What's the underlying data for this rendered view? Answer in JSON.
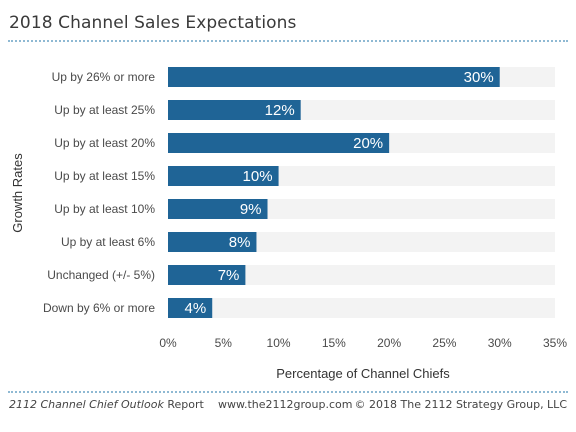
{
  "header": {
    "title": "2018 Channel Sales Expectations"
  },
  "chart_data": {
    "type": "bar",
    "orientation": "horizontal",
    "categories": [
      "Up by 26% or more",
      "Up by at least 25%",
      "Up by at least 20%",
      "Up by at least 15%",
      "Up by at least 10%",
      "Up by at least 6%",
      "Unchanged (+/- 5%)",
      "Down by 6% or more"
    ],
    "values": [
      30,
      12,
      20,
      10,
      9,
      8,
      7,
      4
    ],
    "data_labels": [
      "30%",
      "12%",
      "20%",
      "10%",
      "9%",
      "8%",
      "7%",
      "4%"
    ],
    "xlim": [
      0,
      35
    ],
    "x_ticks": [
      0,
      5,
      10,
      15,
      20,
      25,
      30,
      35
    ],
    "x_tick_labels": [
      "0%",
      "5%",
      "10%",
      "15%",
      "20%",
      "25%",
      "30%",
      "35%"
    ],
    "xlabel": "Percentage of Channel Chiefs",
    "ylabel": "Growth Rates",
    "bar_color": "#1f6496",
    "track_color": "#f3f3f3",
    "grid": false,
    "legend": "none"
  },
  "footer": {
    "report_italic": "2112 Channel Chief Outlook",
    "report_suffix": " Report",
    "website": "www.the2112group.com",
    "copyright": "© 2018 The 2112 Strategy Group, LLC"
  }
}
